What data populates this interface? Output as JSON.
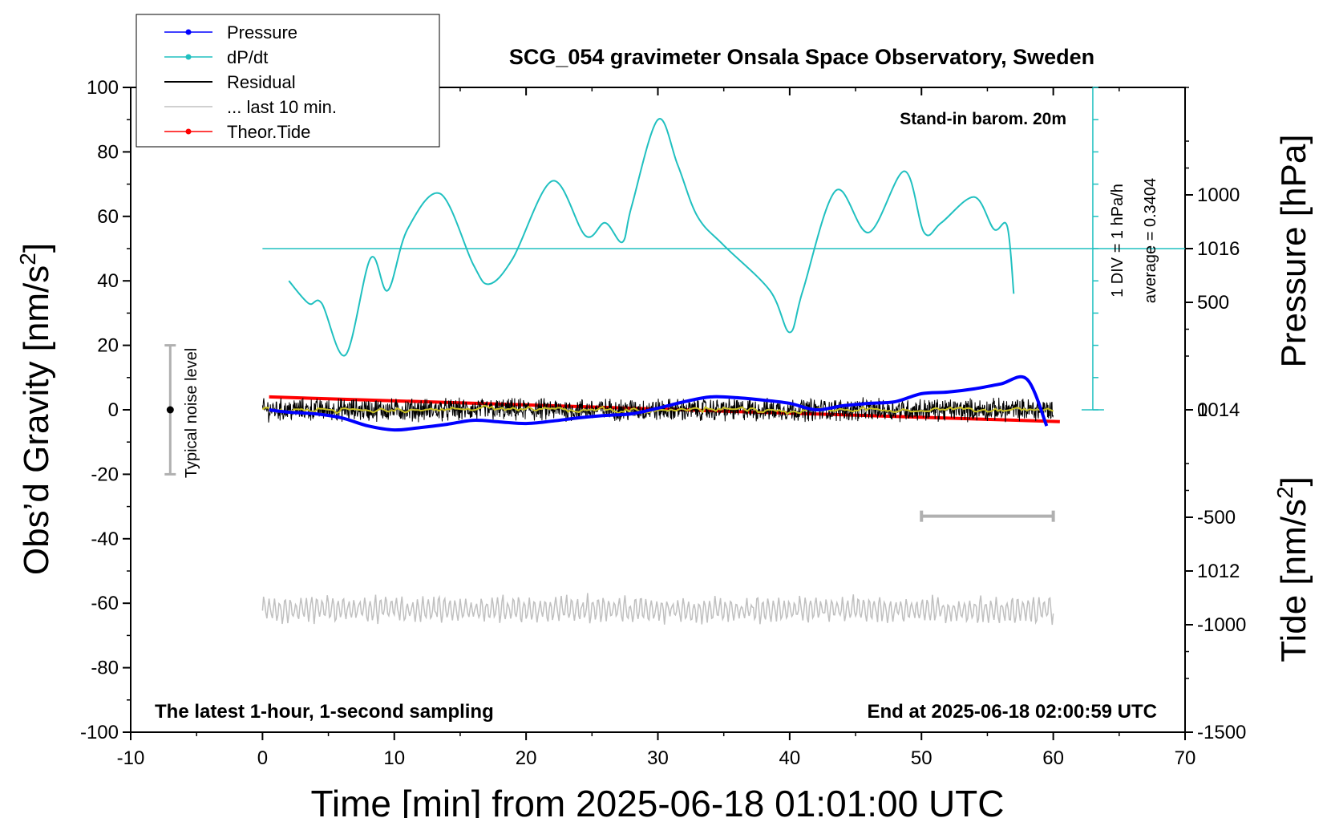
{
  "chart_data": {
    "type": "line",
    "title": "SCG_054 gravimeter Onsala Space Observatory, Sweden",
    "xlabel": "Time [min] from 2025-06-18 01:01:00 UTC",
    "ylabel_left": "Obs’d Gravity [nm/s²]",
    "ylabel_left_main": "Obs’d Gravity [nm/s",
    "ylabel_left_sup": "2",
    "ylabel_left_close": "]",
    "ylabel_right_pressure": "Pressure [hPa]",
    "ylabel_right_tide": "Tide [nm/s²]",
    "ylabel_right_tide_main": "Tide [nm/s",
    "ylabel_right_tide_sup": "2",
    "ylabel_right_tide_close": "]",
    "xlim": [
      -10,
      70
    ],
    "ylim": [
      -100,
      100
    ],
    "pressure_lim": [
      1010,
      1018
    ],
    "tide_lim": [
      -1500,
      1500
    ],
    "x_ticks": [
      -10,
      0,
      10,
      20,
      30,
      40,
      50,
      60,
      70
    ],
    "y_ticks": [
      -100,
      -80,
      -60,
      -40,
      -20,
      0,
      20,
      40,
      60,
      80,
      100
    ],
    "pressure_ticks": [
      1012,
      1014,
      1016
    ],
    "tide_ticks": [
      -1500,
      -1000,
      -500,
      0,
      500,
      1000
    ],
    "annotations": {
      "top_right": "Stand-in barom. 20m",
      "bottom_left": "The latest 1-hour, 1-second sampling",
      "bottom_right": "End at 2025-06-18 02:00:59 UTC",
      "noise_label": "Typical noise level",
      "dpdt_scale": "1 DIV = 1 hPa/h",
      "dpdt_average": "average = 0.3404"
    },
    "noise_bar": {
      "x": -7,
      "center": 0,
      "low": -20,
      "high": 20
    },
    "ten_min_bar": {
      "x_start": 50,
      "x_end": 60,
      "y": -33
    },
    "legend": [
      {
        "name": "Pressure",
        "color": "#0000ff",
        "marker": true
      },
      {
        "name": "dP/dt",
        "color": "#20c0c0",
        "marker": true
      },
      {
        "name": "Residual",
        "color": "#000000",
        "marker": false
      },
      {
        "name": "... last 10 min.",
        "color": "#c0c0c0",
        "marker": false
      },
      {
        "name": "Theor.Tide",
        "color": "#ff0000",
        "marker": true
      }
    ],
    "series": [
      {
        "name": "Pressure",
        "axis": "pressure",
        "color": "#0000ff",
        "x": [
          0.5,
          2,
          4,
          6,
          8,
          10,
          12,
          14,
          16,
          18,
          20,
          22,
          24,
          26,
          28,
          30,
          32,
          34,
          36,
          38,
          40,
          42,
          44,
          46,
          48,
          50,
          52,
          54,
          56,
          58,
          59.5
        ],
        "values": [
          1014.0,
          1013.97,
          1013.95,
          1013.9,
          1013.8,
          1013.75,
          1013.78,
          1013.82,
          1013.87,
          1013.85,
          1013.83,
          1013.86,
          1013.9,
          1013.93,
          1013.95,
          1014.02,
          1014.1,
          1014.16,
          1014.15,
          1014.12,
          1014.08,
          1014.0,
          1014.05,
          1014.08,
          1014.1,
          1014.2,
          1014.22,
          1014.26,
          1014.32,
          1014.38,
          1013.8
        ]
      },
      {
        "name": "dP/dt",
        "axis": "dpdt",
        "color": "#20c0c0",
        "x": [
          2,
          3.5,
          4.5,
          6.3,
          8.2,
          9.5,
          11,
          13.5,
          16,
          17.2,
          19,
          22,
          24.5,
          26,
          27.3,
          28,
          30,
          31.5,
          33,
          35,
          38.5,
          40,
          41,
          43.5,
          46,
          48.7,
          50.2,
          51.5,
          54,
          55.5,
          56.5,
          57
        ],
        "values": [
          40,
          33,
          33,
          17,
          47,
          37,
          56,
          67,
          45,
          39,
          47,
          71,
          54,
          58,
          52,
          63,
          90,
          76,
          60,
          51,
          37,
          24,
          37,
          68,
          55,
          74,
          55,
          58,
          66,
          56,
          57,
          36
        ]
      },
      {
        "name": "Theor.Tide",
        "axis": "tide",
        "color": "#ff0000",
        "x": [
          0.5,
          60.5
        ],
        "values": [
          60,
          -55
        ]
      }
    ],
    "residual": {
      "name": "Residual",
      "color": "#000000",
      "x_range": [
        0,
        60
      ],
      "center": 0,
      "noise_amplitude": 3,
      "filtered_color": "#c8c020"
    },
    "last_10_min": {
      "name": "... last 10 min.",
      "color": "#c0c0c0",
      "x_range": [
        0,
        60
      ],
      "center": -62,
      "amplitude": 3
    },
    "dpdt_reference": {
      "y": 50,
      "x_start": 0,
      "x_end": 70
    }
  }
}
